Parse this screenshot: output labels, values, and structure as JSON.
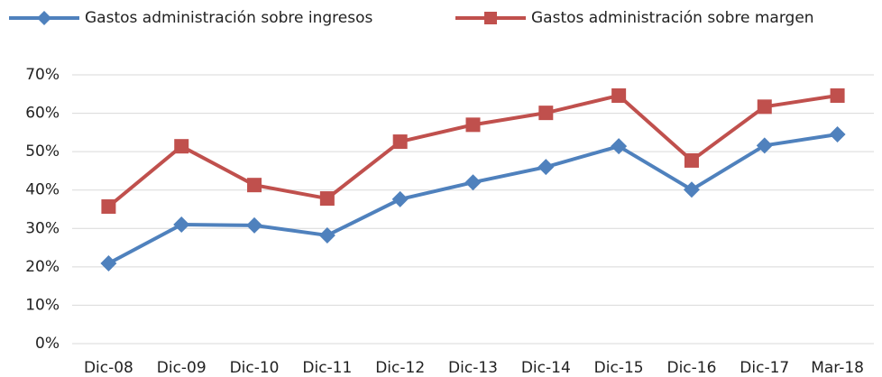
{
  "chart_data": {
    "type": "line",
    "categories": [
      "Dic-08",
      "Dic-09",
      "Dic-10",
      "Dic-11",
      "Dic-12",
      "Dic-13",
      "Dic-14",
      "Dic-15",
      "Dic-16",
      "Dic-17",
      "Mar-18"
    ],
    "series": [
      {
        "name": "Gastos administración sobre ingresos",
        "color": "#4f81bd",
        "marker": "diamond",
        "values": [
          20.9,
          31,
          30.8,
          28.2,
          37.6,
          42,
          46,
          51.4,
          40.1,
          51.6,
          54.5
        ]
      },
      {
        "name": "Gastos administración sobre margen",
        "color": "#c0504d",
        "marker": "square",
        "values": [
          35.7,
          51.4,
          41.3,
          37.8,
          52.6,
          57,
          60.1,
          64.6,
          47.7,
          61.7,
          64.6
        ]
      }
    ],
    "ylim": [
      0,
      70
    ],
    "yticks": [
      {
        "value": 0,
        "label": "0%"
      },
      {
        "value": 10,
        "label": "10%"
      },
      {
        "value": 20,
        "label": "20%"
      },
      {
        "value": 30,
        "label": "30%"
      },
      {
        "value": 40,
        "label": "40%"
      },
      {
        "value": 50,
        "label": "50%"
      },
      {
        "value": 60,
        "label": "60%"
      },
      {
        "value": 70,
        "label": "70%"
      }
    ],
    "grid": true,
    "legend": "top"
  }
}
